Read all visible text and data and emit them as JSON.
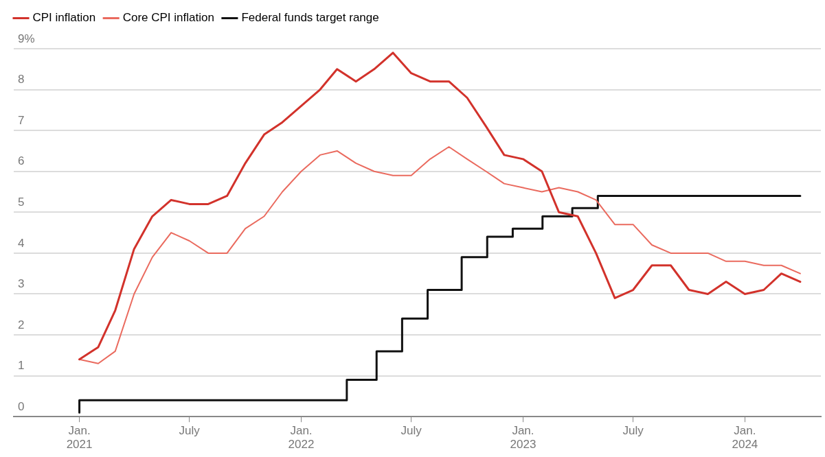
{
  "chart_data": {
    "type": "line",
    "x": [
      "2021-01",
      "2021-02",
      "2021-03",
      "2021-04",
      "2021-05",
      "2021-06",
      "2021-07",
      "2021-08",
      "2021-09",
      "2021-10",
      "2021-11",
      "2021-12",
      "2022-01",
      "2022-02",
      "2022-03",
      "2022-04",
      "2022-05",
      "2022-06",
      "2022-07",
      "2022-08",
      "2022-09",
      "2022-10",
      "2022-11",
      "2022-12",
      "2023-01",
      "2023-02",
      "2023-03",
      "2023-04",
      "2023-05",
      "2023-06",
      "2023-07",
      "2023-08",
      "2023-09",
      "2023-10",
      "2023-11",
      "2023-12",
      "2024-01",
      "2024-02",
      "2024-03",
      "2024-04"
    ],
    "series": [
      {
        "name": "CPI inflation",
        "color": "#d2322b",
        "values": [
          1.4,
          1.7,
          2.6,
          4.1,
          4.9,
          5.3,
          5.2,
          5.2,
          5.4,
          6.2,
          6.9,
          7.2,
          7.6,
          8.0,
          8.5,
          8.2,
          8.5,
          8.9,
          8.4,
          8.2,
          8.2,
          7.8,
          7.1,
          6.4,
          6.3,
          6.0,
          5.0,
          4.9,
          4.0,
          2.9,
          3.1,
          3.7,
          3.7,
          3.1,
          3.0,
          3.3,
          3.0,
          3.1,
          3.5,
          3.3
        ]
      },
      {
        "name": "Core CPI inflation",
        "color": "#ea6a5e",
        "values": [
          1.4,
          1.3,
          1.6,
          3.0,
          3.9,
          4.5,
          4.3,
          4.0,
          4.0,
          4.6,
          4.9,
          5.5,
          6.0,
          6.4,
          6.5,
          6.2,
          6.0,
          5.9,
          5.9,
          6.3,
          6.6,
          6.3,
          6.0,
          5.7,
          5.6,
          5.5,
          5.6,
          5.5,
          5.3,
          4.7,
          4.7,
          4.2,
          4.0,
          4.0,
          4.0,
          3.8,
          3.8,
          3.7,
          3.7,
          3.5
        ]
      },
      {
        "name": "Federal funds target range",
        "type": "step",
        "color": "#111111",
        "x": [
          "2021-01-01",
          "2022-03-17",
          "2022-05-05",
          "2022-06-16",
          "2022-07-28",
          "2022-09-22",
          "2022-11-03",
          "2022-12-15",
          "2023-02-02",
          "2023-03-23",
          "2023-05-04",
          "2023-07-27",
          "2024-04-01"
        ],
        "values": [
          0.1,
          0.4,
          0.9,
          1.6,
          2.4,
          3.1,
          3.9,
          4.4,
          4.6,
          4.9,
          5.1,
          5.4,
          5.4
        ]
      }
    ],
    "xlim": [
      "2020-09-15",
      "2024-05-05"
    ],
    "xticks": [
      {
        "value": "2021-01",
        "label": "Jan. 2021"
      },
      {
        "value": "2021-07",
        "label": "July"
      },
      {
        "value": "2022-01",
        "label": "Jan. 2022"
      },
      {
        "value": "2022-07",
        "label": "July"
      },
      {
        "value": "2023-01",
        "label": "Jan. 2023"
      },
      {
        "value": "2023-07",
        "label": "July"
      },
      {
        "value": "2024-01",
        "label": "Jan. 2024"
      }
    ],
    "ylim": [
      0,
      9
    ],
    "yticks": [
      0,
      1,
      2,
      3,
      4,
      5,
      6,
      7,
      8,
      {
        "value": 9,
        "label": "9%"
      }
    ],
    "grid": "y",
    "legend": "top left",
    "marker": "none",
    "line_style": "solid"
  }
}
